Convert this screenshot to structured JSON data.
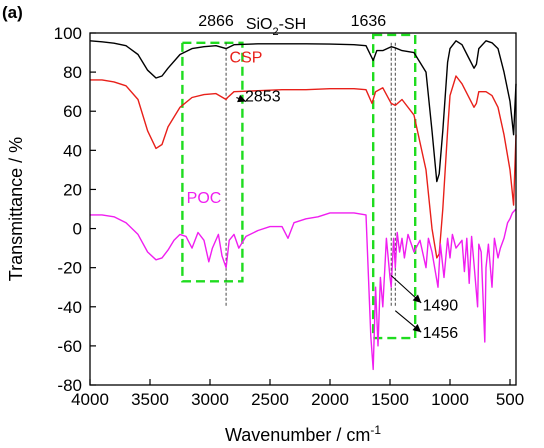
{
  "chart_data": {
    "type": "line",
    "panel_label": "(a)",
    "xlabel": "Wavenumber / cm",
    "xlabel_sup": "-1",
    "ylabel": "Transmittance / %",
    "xlim": [
      4000,
      450
    ],
    "ylim": [
      -80,
      100
    ],
    "x_reversed": true,
    "grid": false,
    "x_ticks": [
      4000,
      3500,
      3000,
      2500,
      2000,
      1500,
      1000,
      500
    ],
    "y_ticks": [
      -80,
      -60,
      -40,
      -20,
      0,
      20,
      40,
      60,
      80,
      100
    ],
    "colors": {
      "siosh": "#000000",
      "csp": "#e8201a",
      "poc": "#f01ef0",
      "box": "#1fdc1f"
    },
    "series": [
      {
        "key": "siosh",
        "label_text": {
          "prefix": "SiO",
          "sub": "2",
          "suffix": "-SH"
        },
        "label_at": [
          2450,
          102
        ],
        "points": [
          [
            4000,
            96
          ],
          [
            3900,
            95.5
          ],
          [
            3800,
            94.8
          ],
          [
            3700,
            93.5
          ],
          [
            3600,
            89
          ],
          [
            3520,
            81
          ],
          [
            3450,
            77
          ],
          [
            3400,
            78
          ],
          [
            3350,
            82
          ],
          [
            3250,
            89
          ],
          [
            3150,
            92
          ],
          [
            3050,
            93
          ],
          [
            2950,
            93.5
          ],
          [
            2866,
            92
          ],
          [
            2800,
            94
          ],
          [
            2600,
            94.5
          ],
          [
            2400,
            94.5
          ],
          [
            2200,
            94.5
          ],
          [
            2000,
            94.3
          ],
          [
            1800,
            94
          ],
          [
            1700,
            93.5
          ],
          [
            1640,
            86
          ],
          [
            1610,
            91
          ],
          [
            1560,
            91
          ],
          [
            1490,
            93
          ],
          [
            1460,
            92.5
          ],
          [
            1400,
            91
          ],
          [
            1300,
            90
          ],
          [
            1200,
            80
          ],
          [
            1150,
            50
          ],
          [
            1110,
            24
          ],
          [
            1090,
            28
          ],
          [
            1060,
            50
          ],
          [
            1020,
            85
          ],
          [
            1000,
            92
          ],
          [
            950,
            96
          ],
          [
            900,
            94
          ],
          [
            850,
            88
          ],
          [
            800,
            82
          ],
          [
            780,
            84
          ],
          [
            760,
            92
          ],
          [
            700,
            96
          ],
          [
            650,
            95
          ],
          [
            600,
            92
          ],
          [
            550,
            80
          ],
          [
            500,
            65
          ],
          [
            470,
            48
          ],
          [
            450,
            74
          ]
        ]
      },
      {
        "key": "csp",
        "label_text": {
          "prefix": "CSP",
          "sub": "",
          "suffix": ""
        },
        "label_at": [
          2700,
          85
        ],
        "points": [
          [
            4000,
            76
          ],
          [
            3900,
            76
          ],
          [
            3800,
            75
          ],
          [
            3700,
            73
          ],
          [
            3600,
            66
          ],
          [
            3520,
            50
          ],
          [
            3450,
            41
          ],
          [
            3400,
            43
          ],
          [
            3350,
            52
          ],
          [
            3250,
            62
          ],
          [
            3150,
            67
          ],
          [
            3050,
            68.5
          ],
          [
            2950,
            69
          ],
          [
            2866,
            66
          ],
          [
            2853,
            67
          ],
          [
            2800,
            70
          ],
          [
            2600,
            70.5
          ],
          [
            2400,
            71
          ],
          [
            2200,
            71
          ],
          [
            2000,
            71.5
          ],
          [
            1800,
            71.5
          ],
          [
            1700,
            71
          ],
          [
            1650,
            64
          ],
          [
            1620,
            70
          ],
          [
            1560,
            72
          ],
          [
            1490,
            64
          ],
          [
            1456,
            63
          ],
          [
            1400,
            66
          ],
          [
            1300,
            58
          ],
          [
            1200,
            30
          ],
          [
            1150,
            0
          ],
          [
            1110,
            -15
          ],
          [
            1090,
            -13
          ],
          [
            1060,
            10
          ],
          [
            1020,
            50
          ],
          [
            1000,
            68
          ],
          [
            950,
            78
          ],
          [
            900,
            74
          ],
          [
            850,
            68
          ],
          [
            800,
            62
          ],
          [
            780,
            64
          ],
          [
            760,
            70
          ],
          [
            700,
            70
          ],
          [
            650,
            68
          ],
          [
            600,
            62
          ],
          [
            550,
            48
          ],
          [
            500,
            30
          ],
          [
            470,
            12
          ],
          [
            450,
            48
          ]
        ]
      },
      {
        "key": "poc",
        "label_text": {
          "prefix": "POC",
          "sub": "",
          "suffix": ""
        },
        "label_at": [
          3050,
          13
        ],
        "points": [
          [
            4000,
            7
          ],
          [
            3900,
            7
          ],
          [
            3800,
            6
          ],
          [
            3700,
            3
          ],
          [
            3600,
            -3
          ],
          [
            3520,
            -12
          ],
          [
            3450,
            -16
          ],
          [
            3400,
            -15
          ],
          [
            3350,
            -11
          ],
          [
            3300,
            -6
          ],
          [
            3250,
            -3
          ],
          [
            3200,
            -4
          ],
          [
            3150,
            -10
          ],
          [
            3100,
            -2
          ],
          [
            3050,
            -6
          ],
          [
            3010,
            -17
          ],
          [
            2980,
            -10
          ],
          [
            2930,
            -3
          ],
          [
            2900,
            -14
          ],
          [
            2866,
            -20
          ],
          [
            2840,
            -6
          ],
          [
            2800,
            -3
          ],
          [
            2760,
            -10
          ],
          [
            2700,
            -4
          ],
          [
            2600,
            -1
          ],
          [
            2500,
            1
          ],
          [
            2400,
            1
          ],
          [
            2350,
            -5
          ],
          [
            2300,
            3
          ],
          [
            2200,
            5
          ],
          [
            2100,
            6
          ],
          [
            2000,
            8
          ],
          [
            1900,
            8
          ],
          [
            1800,
            8
          ],
          [
            1700,
            7
          ],
          [
            1660,
            -55
          ],
          [
            1640,
            -72
          ],
          [
            1620,
            -30
          ],
          [
            1600,
            -60
          ],
          [
            1580,
            -25
          ],
          [
            1560,
            -40
          ],
          [
            1530,
            -5
          ],
          [
            1500,
            -25
          ],
          [
            1490,
            -30
          ],
          [
            1470,
            -5
          ],
          [
            1456,
            -20
          ],
          [
            1440,
            -2
          ],
          [
            1420,
            -12
          ],
          [
            1400,
            -5
          ],
          [
            1380,
            -15
          ],
          [
            1350,
            -3
          ],
          [
            1300,
            -12
          ],
          [
            1250,
            -6
          ],
          [
            1200,
            -20
          ],
          [
            1180,
            -5
          ],
          [
            1150,
            -12
          ],
          [
            1100,
            -30
          ],
          [
            1080,
            -8
          ],
          [
            1050,
            -25
          ],
          [
            1020,
            -5
          ],
          [
            1000,
            -15
          ],
          [
            980,
            -3
          ],
          [
            950,
            -10
          ],
          [
            900,
            -6
          ],
          [
            880,
            -22
          ],
          [
            860,
            -5
          ],
          [
            840,
            -28
          ],
          [
            820,
            -4
          ],
          [
            800,
            -18
          ],
          [
            770,
            -40
          ],
          [
            760,
            -8
          ],
          [
            740,
            -12
          ],
          [
            710,
            -58
          ],
          [
            700,
            -20
          ],
          [
            680,
            -8
          ],
          [
            650,
            -30
          ],
          [
            630,
            -5
          ],
          [
            600,
            -15
          ],
          [
            580,
            -10
          ],
          [
            550,
            -5
          ],
          [
            520,
            3
          ],
          [
            500,
            5
          ],
          [
            480,
            8
          ],
          [
            450,
            10
          ]
        ]
      }
    ],
    "annotations": [
      {
        "text": "2866",
        "at": [
          2950,
          103.5
        ]
      },
      {
        "text": "1636",
        "at": [
          1680,
          103.5
        ]
      },
      {
        "text": "2853",
        "at": [
          2560,
          65
        ]
      },
      {
        "text": "1490",
        "at": [
          1080,
          -42
        ]
      },
      {
        "text": "1456",
        "at": [
          1080,
          -56
        ]
      }
    ],
    "marker_lines": [
      2866,
      1490,
      1456
    ],
    "boxes": [
      [
        3230,
        -27,
        2730,
        95
      ],
      [
        1640,
        -56,
        1290,
        99
      ]
    ],
    "arrows": [
      {
        "from": [
          2780,
          67
        ],
        "to": [
          2700,
          65
        ]
      },
      {
        "from": [
          1490,
          -24
        ],
        "to": [
          1240,
          -38
        ]
      },
      {
        "from": [
          1456,
          -42
        ],
        "to": [
          1240,
          -53
        ]
      }
    ]
  }
}
